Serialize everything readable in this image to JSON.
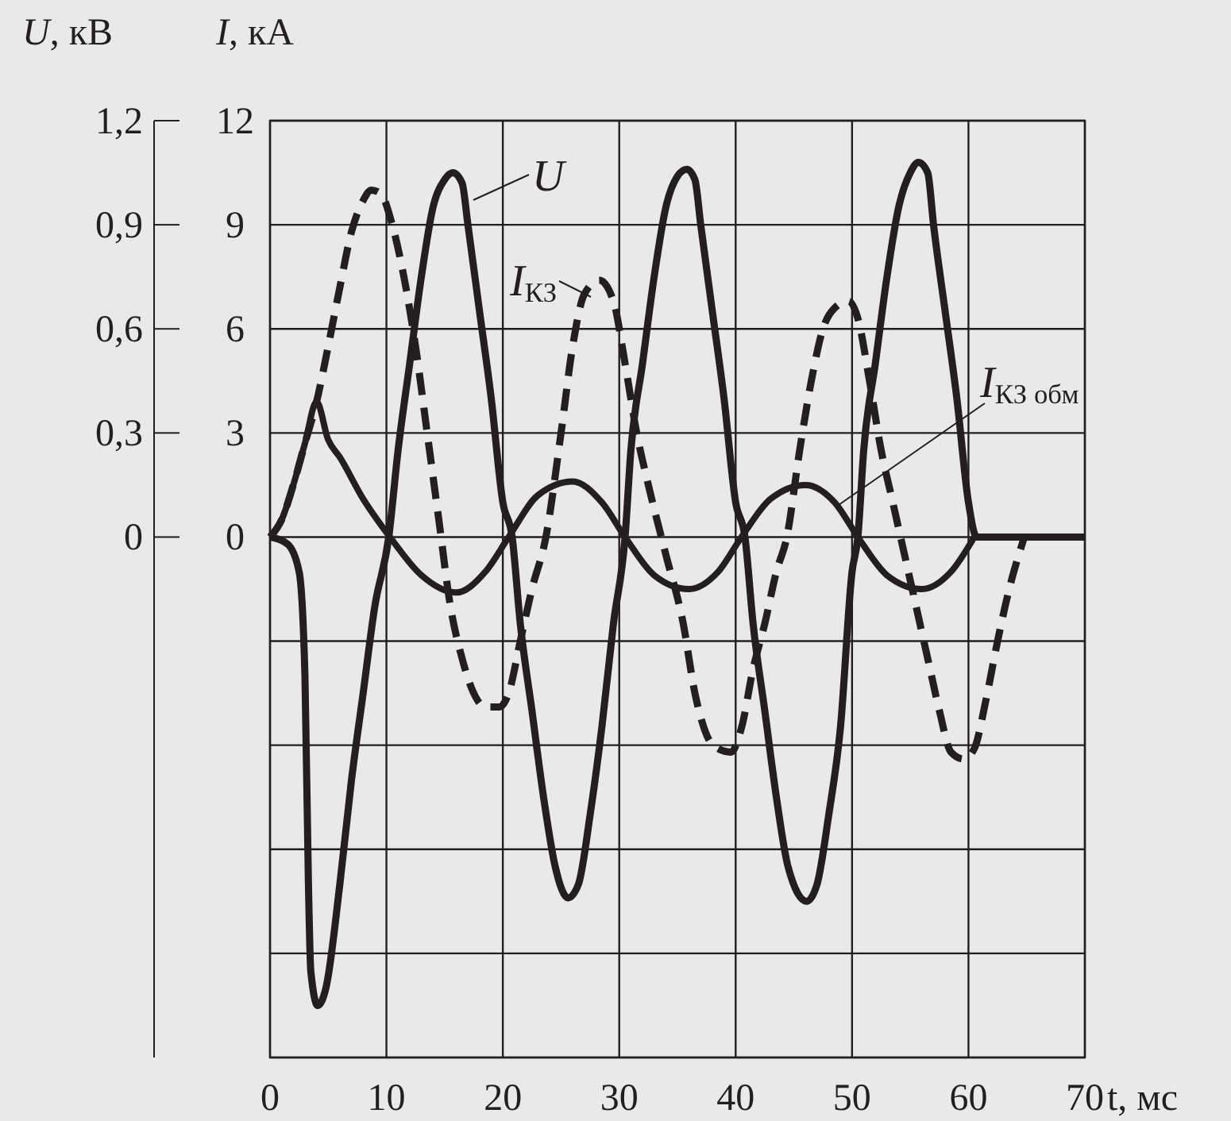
{
  "chart_data": {
    "type": "line",
    "xlabel": "t, мс",
    "ylabel": "I, кА",
    "y2label": "U, кВ",
    "xlim": [
      0,
      70
    ],
    "xticks": [
      0,
      10,
      20,
      30,
      40,
      50,
      60,
      70
    ],
    "ylim": [
      -15,
      12
    ],
    "yticks": [
      {
        "value": -15,
        "label": null
      },
      {
        "value": -12,
        "label": null
      },
      {
        "value": -9,
        "label": null
      },
      {
        "value": -6,
        "label": null
      },
      {
        "value": -3,
        "label": null
      },
      0,
      3,
      6,
      9,
      12
    ],
    "y2lim": [
      -1.5,
      1.2
    ],
    "y2ticks": [
      0,
      {
        "value": 0.3,
        "label": "0,3"
      },
      {
        "value": 0.6,
        "label": "0,6"
      },
      {
        "value": 0.9,
        "label": "0,9"
      },
      {
        "value": 1.2,
        "label": "1,2"
      }
    ],
    "grid": true,
    "series": [
      {
        "name": "U",
        "color": "#231f20",
        "axis": "y2",
        "line_style": "solid",
        "x": [
          0,
          1.5,
          2.5,
          3,
          3.3,
          3.5,
          4.1,
          4.8,
          6,
          7,
          8,
          9,
          10.2,
          11,
          12,
          13,
          14,
          15,
          15.7,
          16.5,
          17,
          18,
          19,
          20,
          20.8,
          21.5,
          22.5,
          23.5,
          24.5,
          25.6,
          26.5,
          27.5,
          28.5,
          29.5,
          30.5,
          31,
          32,
          33,
          34,
          35,
          35.8,
          36.5,
          37,
          38,
          39,
          40,
          40.8,
          41.5,
          42.5,
          43.5,
          44.5,
          46.1,
          47,
          48,
          49,
          50,
          50.5,
          51,
          52,
          53,
          54,
          55,
          55.7,
          56.5,
          57,
          58,
          59,
          60,
          60.7,
          70
        ],
        "values": [
          0,
          -0.02,
          -0.1,
          -0.4,
          -1.0,
          -1.25,
          -1.35,
          -1.3,
          -1.0,
          -0.7,
          -0.45,
          -0.2,
          0,
          0.25,
          0.5,
          0.75,
          0.95,
          1.03,
          1.05,
          1.02,
          0.9,
          0.65,
          0.4,
          0.1,
          0,
          -0.25,
          -0.5,
          -0.75,
          -0.95,
          -1.04,
          -1.0,
          -0.8,
          -0.55,
          -0.25,
          0,
          0.25,
          0.5,
          0.75,
          0.95,
          1.04,
          1.06,
          1.03,
          0.9,
          0.65,
          0.4,
          0.1,
          0,
          -0.25,
          -0.5,
          -0.75,
          -0.95,
          -1.05,
          -1.0,
          -0.8,
          -0.55,
          -0.1,
          0,
          0.25,
          0.5,
          0.75,
          0.95,
          1.05,
          1.08,
          1.05,
          0.9,
          0.65,
          0.4,
          0.1,
          0,
          0
        ]
      },
      {
        "name": "I$_{КЗ}$",
        "color": "#231f20",
        "line_style": "dashed",
        "x": [
          0,
          1,
          2,
          3,
          4,
          5,
          6,
          7,
          8,
          8.7,
          9.5,
          10.5,
          11.5,
          12.5,
          13.5,
          14.5,
          15.5,
          16.5,
          17.5,
          18.5,
          19.7,
          20.5,
          21.5,
          22.5,
          23.7,
          25,
          26,
          27,
          28.3,
          29.5,
          30.5,
          31.5,
          32.5,
          34,
          35.5,
          36.5,
          37.5,
          38.5,
          39.6,
          40.5,
          41.5,
          42.5,
          43.5,
          44.4,
          45.5,
          46.5,
          47.5,
          48.5,
          49.7,
          50.5,
          51.5,
          52.5,
          53.5,
          54.5,
          55.5,
          56.5,
          57.5,
          58.5,
          59.6,
          60.5,
          61.5,
          62.5,
          63.5,
          64.8
        ],
        "values": [
          0,
          0.5,
          1.5,
          2.7,
          3.9,
          5.5,
          7.2,
          8.8,
          9.7,
          10,
          9.9,
          9,
          7.5,
          5.5,
          3,
          0.5,
          -2,
          -3.5,
          -4.5,
          -4.9,
          -4.9,
          -4.5,
          -3,
          -1.5,
          0,
          3,
          5.5,
          7,
          7.4,
          6.8,
          5,
          3,
          1.5,
          -0.5,
          -2.5,
          -4.5,
          -5.7,
          -6.1,
          -6.2,
          -5.5,
          -3.8,
          -2.5,
          -1,
          0,
          2.5,
          4.5,
          6,
          6.6,
          6.8,
          6.3,
          4.5,
          2.5,
          1,
          -0.5,
          -2,
          -3.5,
          -5,
          -6.2,
          -6.4,
          -6.1,
          -4.7,
          -3,
          -1.5,
          0
        ]
      },
      {
        "name": "I$_{КЗ обм}$",
        "color": "#231f20",
        "line_style": "solid",
        "x": [
          0,
          1,
          2,
          3,
          4,
          5,
          6,
          8,
          10.3,
          13,
          16,
          18.5,
          20.5,
          23,
          26,
          28.5,
          30.5,
          33,
          36,
          38.5,
          40.5,
          43,
          46,
          48.5,
          50.5,
          53,
          56,
          58.5,
          60.5
        ],
        "values": [
          0,
          0.5,
          1.5,
          2.7,
          3.9,
          2.8,
          2.3,
          1.1,
          0,
          -1.1,
          -1.6,
          -1,
          0,
          1.2,
          1.6,
          1,
          0,
          -1.1,
          -1.5,
          -1,
          0,
          1.1,
          1.5,
          1,
          0,
          -1.1,
          -1.5,
          -1,
          0
        ]
      }
    ]
  }
}
